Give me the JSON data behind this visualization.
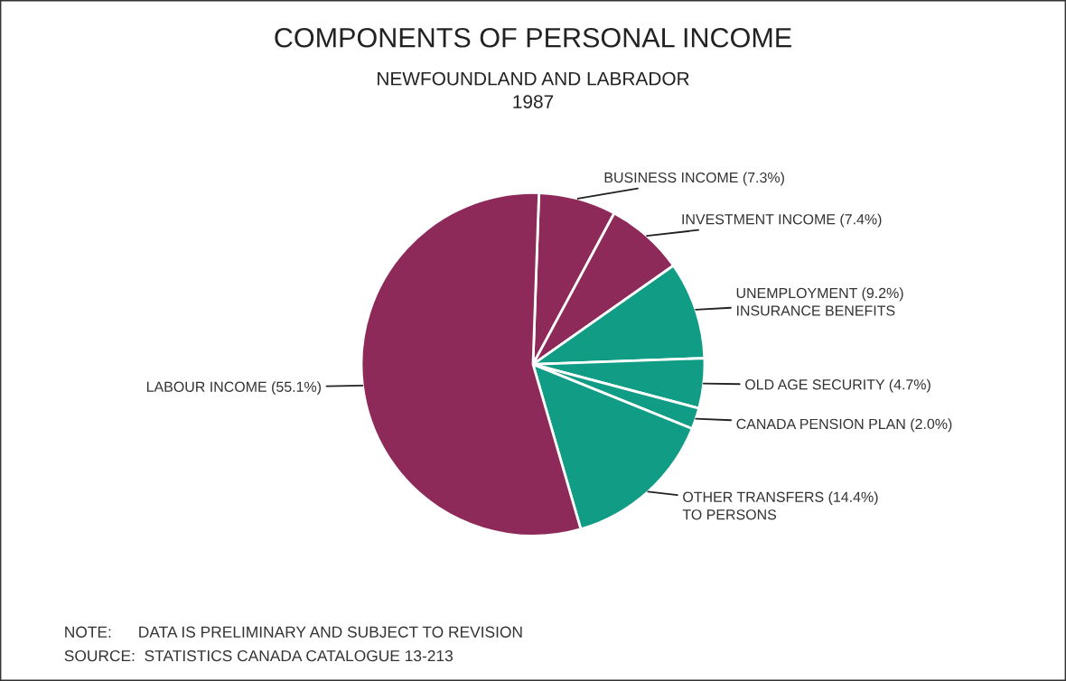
{
  "chart_data": {
    "type": "pie",
    "title": "COMPONENTS OF PERSONAL INCOME",
    "subtitle": "NEWFOUNDLAND AND LABRADOR\n1987",
    "categories": [
      "BUSINESS INCOME (7.3%)",
      "INVESTMENT INCOME (7.4%)",
      "UNEMPLOYMENT (9.2%)\nINSURANCE BENEFITS",
      "OLD AGE SECURITY (4.7%)",
      "CANADA PENSION PLAN (2.0%)",
      "OTHER TRANSFERS (14.4%)\nTO PERSONS",
      "LABOUR INCOME (55.1%)"
    ],
    "values": [
      7.3,
      7.4,
      9.2,
      4.7,
      2.0,
      14.4,
      55.1
    ],
    "colors": [
      "#8e2a5a",
      "#8e2a5a",
      "#119c86",
      "#119c86",
      "#119c86",
      "#119c86",
      "#8e2a5a"
    ],
    "annotations": [
      "NOTE:      DATA IS PRELIMINARY AND SUBJECT TO REVISION",
      "SOURCE:  STATISTICS CANADA CATALOGUE 13-213"
    ],
    "legend": false
  }
}
